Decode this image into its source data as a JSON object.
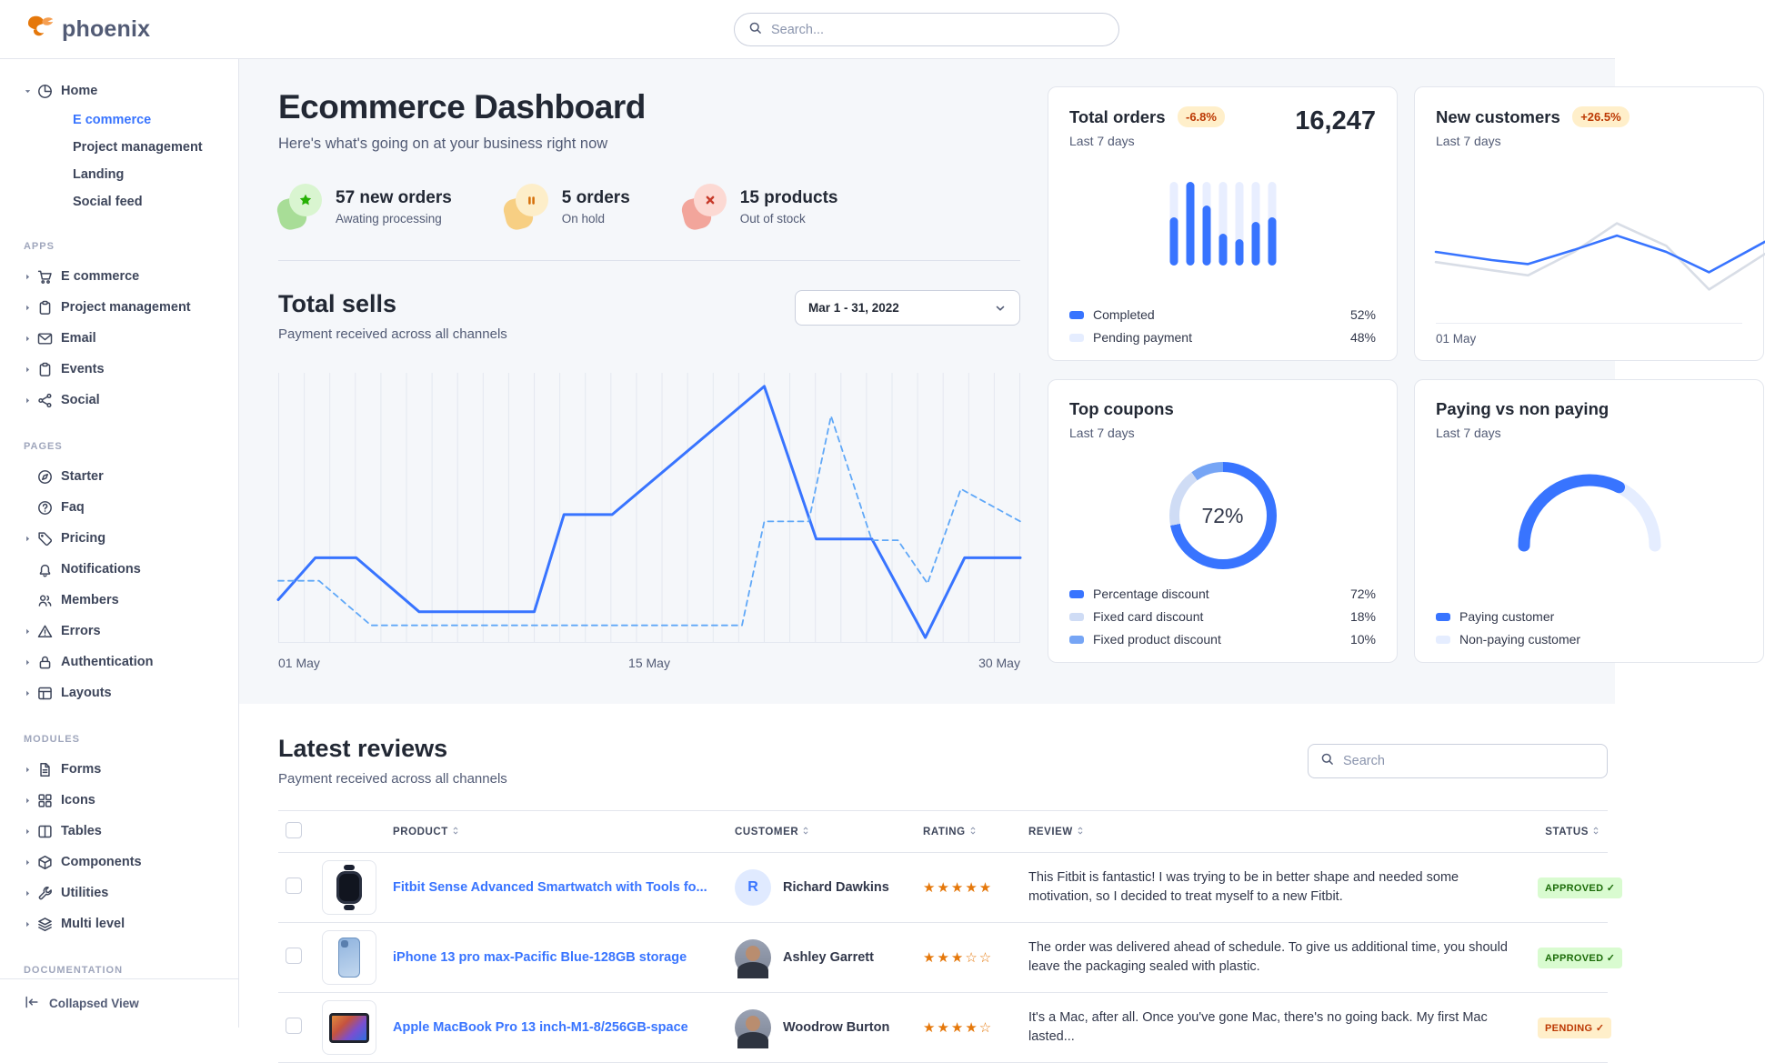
{
  "navbar": {
    "brand": "phoenix",
    "search_placeholder": "Search..."
  },
  "sidebar": {
    "collapse_label": "Collapsed View",
    "groups": [
      {
        "label": "",
        "items": [
          {
            "icon": "pie-chart",
            "label": "Home",
            "caret": "down",
            "children": [
              {
                "label": "E commerce",
                "active": true
              },
              {
                "label": "Project management",
                "active": false
              },
              {
                "label": "Landing",
                "active": false
              },
              {
                "label": "Social feed",
                "active": false
              }
            ]
          }
        ]
      },
      {
        "label": "APPS",
        "items": [
          {
            "icon": "cart",
            "label": "E commerce",
            "caret": "right"
          },
          {
            "icon": "clipboard",
            "label": "Project management",
            "caret": "right"
          },
          {
            "icon": "envelope",
            "label": "Email",
            "caret": "right"
          },
          {
            "icon": "clipboard",
            "label": "Events",
            "caret": "right"
          },
          {
            "icon": "share",
            "label": "Social",
            "caret": "right"
          }
        ]
      },
      {
        "label": "PAGES",
        "items": [
          {
            "icon": "compass",
            "label": "Starter",
            "caret": ""
          },
          {
            "icon": "question-circle",
            "label": "Faq",
            "caret": ""
          },
          {
            "icon": "tag",
            "label": "Pricing",
            "caret": "right"
          },
          {
            "icon": "bell",
            "label": "Notifications",
            "caret": ""
          },
          {
            "icon": "users",
            "label": "Members",
            "caret": ""
          },
          {
            "icon": "warning-triangle",
            "label": "Errors",
            "caret": "right"
          },
          {
            "icon": "lock",
            "label": "Authentication",
            "caret": "right"
          },
          {
            "icon": "layout",
            "label": "Layouts",
            "caret": "right"
          }
        ]
      },
      {
        "label": "MODULES",
        "items": [
          {
            "icon": "file-text",
            "label": "Forms",
            "caret": "right"
          },
          {
            "icon": "grid",
            "label": "Icons",
            "caret": "right"
          },
          {
            "icon": "columns",
            "label": "Tables",
            "caret": "right"
          },
          {
            "icon": "box",
            "label": "Components",
            "caret": "right"
          },
          {
            "icon": "wrench",
            "label": "Utilities",
            "caret": "right"
          },
          {
            "icon": "layers",
            "label": "Multi level",
            "caret": "right"
          }
        ]
      },
      {
        "label": "DOCUMENTATION",
        "items": []
      }
    ]
  },
  "dashboard": {
    "title": "Ecommerce Dashboard",
    "subtitle": "Here's what's going on at your business right now",
    "stats": [
      {
        "icon": "star",
        "theme": "green",
        "value": "57 new orders",
        "caption": "Awating processing"
      },
      {
        "icon": "pause",
        "theme": "orange",
        "value": "5 orders",
        "caption": "On hold"
      },
      {
        "icon": "x",
        "theme": "red",
        "value": "15 products",
        "caption": "Out of stock"
      }
    ],
    "total_sells": {
      "title": "Total sells",
      "subtitle": "Payment received across all channels",
      "date_range": "Mar 1 - 31, 2022"
    }
  },
  "cards": {
    "total_orders": {
      "title": "Total orders",
      "badge": "-6.8%",
      "period": "Last 7 days",
      "value": "16,247"
    },
    "new_customers": {
      "title": "New customers",
      "badge": "+26.5%",
      "period": "Last 7 days",
      "axis_label": "01 May"
    },
    "top_coupons": {
      "title": "Top coupons",
      "period": "Last 7 days",
      "center_label": "72%"
    },
    "paying": {
      "title": "Paying vs non paying",
      "period": "Last 7 days"
    }
  },
  "reviews": {
    "title": "Latest reviews",
    "subtitle": "Payment received across all channels",
    "search_placeholder": "Search",
    "columns": [
      "PRODUCT",
      "CUSTOMER",
      "RATING",
      "REVIEW",
      "STATUS"
    ],
    "rows": [
      {
        "product": "Fitbit Sense Advanced Smartwatch with Tools fo...",
        "product_image": "smartwatch",
        "customer": "Richard Dawkins",
        "avatar_type": "initial",
        "avatar_text": "R",
        "rating": 5,
        "review": "This Fitbit is fantastic! I was trying to be in better shape and needed some motivation, so I decided to treat myself to a new Fitbit.",
        "status": "APPROVED",
        "status_type": "success"
      },
      {
        "product": "iPhone 13 pro max-Pacific Blue-128GB storage",
        "product_image": "phone",
        "customer": "Ashley Garrett",
        "avatar_type": "photo",
        "avatar_text": "",
        "rating": 3,
        "review": "The order was delivered ahead of schedule. To give us additional time, you should leave the packaging sealed with plastic.",
        "status": "APPROVED",
        "status_type": "success"
      },
      {
        "product": "Apple MacBook Pro 13 inch-M1-8/256GB-space",
        "product_image": "tablet",
        "customer": "Woodrow Burton",
        "avatar_type": "photo",
        "avatar_text": "",
        "rating": 4,
        "review": "It's a Mac, after all. Once you've gone Mac, there's no going back. My first Mac lasted...",
        "status": "PENDING",
        "status_type": "warning"
      }
    ]
  },
  "chart_data": [
    {
      "id": "total-sells",
      "type": "line",
      "title": "Total sells",
      "subtitle": "Payment received across all channels",
      "x_ticks": [
        "01 May",
        "15 May",
        "30 May"
      ],
      "grid": "vertical",
      "gridline_count": 30,
      "legend_position": "none",
      "note": "points are [x 0-1 across Mar 1-31 range, y 0-1 bottom-up normalized]",
      "series": [
        {
          "name": "sells-current",
          "style": "solid",
          "color": "#3874ff",
          "points": [
            [
              0,
              0.16
            ],
            [
              0.05,
              0.315
            ],
            [
              0.105,
              0.315
            ],
            [
              0.19,
              0.115
            ],
            [
              0.345,
              0.115
            ],
            [
              0.385,
              0.475
            ],
            [
              0.45,
              0.475
            ],
            [
              0.655,
              0.95
            ],
            [
              0.725,
              0.385
            ],
            [
              0.8,
              0.385
            ],
            [
              0.872,
              0.02
            ],
            [
              0.925,
              0.315
            ],
            [
              1,
              0.315
            ]
          ]
        },
        {
          "name": "sells-previous",
          "style": "dashed",
          "color": "#60a8f8",
          "points": [
            [
              0,
              0.23
            ],
            [
              0.055,
              0.23
            ],
            [
              0.125,
              0.065
            ],
            [
              0.625,
              0.065
            ],
            [
              0.655,
              0.45
            ],
            [
              0.715,
              0.45
            ],
            [
              0.745,
              0.84
            ],
            [
              0.8,
              0.38
            ],
            [
              0.835,
              0.38
            ],
            [
              0.875,
              0.22
            ],
            [
              0.92,
              0.57
            ],
            [
              1,
              0.45
            ]
          ]
        }
      ]
    },
    {
      "id": "total-orders",
      "type": "bar",
      "title": "Total orders",
      "value": "16,247",
      "change": "-6.8%",
      "period": "Last 7 days",
      "bars_fill_pct": [
        58,
        100,
        72,
        38,
        32,
        52,
        58
      ],
      "bar_color": "#3874ff",
      "track_color": "#e8eeff",
      "legend": [
        {
          "label": "Completed",
          "value": "52%",
          "color": "#3874ff"
        },
        {
          "label": "Pending payment",
          "value": "48%",
          "color": "#e5edff"
        }
      ]
    },
    {
      "id": "new-customers",
      "type": "line",
      "title": "New customers",
      "change": "+26.5%",
      "period": "Last 7 days",
      "x_ticks": [
        "01 May"
      ],
      "series": [
        {
          "name": "previous",
          "style": "solid",
          "color": "#d8dde6",
          "points": [
            [
              0,
              0.4
            ],
            [
              0.17,
              0.32
            ],
            [
              0.28,
              0.27
            ],
            [
              0.42,
              0.5
            ],
            [
              0.55,
              0.78
            ],
            [
              0.7,
              0.56
            ],
            [
              0.83,
              0.13
            ],
            [
              1,
              0.48
            ]
          ]
        },
        {
          "name": "current",
          "style": "solid",
          "color": "#3874ff",
          "points": [
            [
              0,
              0.5
            ],
            [
              0.17,
              0.42
            ],
            [
              0.28,
              0.38
            ],
            [
              0.42,
              0.52
            ],
            [
              0.55,
              0.66
            ],
            [
              0.7,
              0.5
            ],
            [
              0.83,
              0.3
            ],
            [
              1,
              0.6
            ]
          ]
        }
      ]
    },
    {
      "id": "top-coupons",
      "type": "donut",
      "title": "Top coupons",
      "period": "Last 7 days",
      "center_label": "72%",
      "segments": [
        {
          "label": "Percentage discount",
          "value": 72,
          "display": "72%",
          "color": "#3874ff"
        },
        {
          "label": "Fixed card discount",
          "value": 18,
          "display": "18%",
          "color": "#cfdcf5"
        },
        {
          "label": "Fixed product discount",
          "value": 10,
          "display": "10%",
          "color": "#76a5f5"
        }
      ]
    },
    {
      "id": "paying-gauge",
      "type": "gauge",
      "title": "Paying vs non paying",
      "period": "Last 7 days",
      "segments": [
        {
          "label": "Paying customer",
          "value": 65,
          "color": "#3874ff"
        },
        {
          "label": "Non-paying customer",
          "value": 35,
          "color": "#e5edff"
        }
      ]
    }
  ]
}
